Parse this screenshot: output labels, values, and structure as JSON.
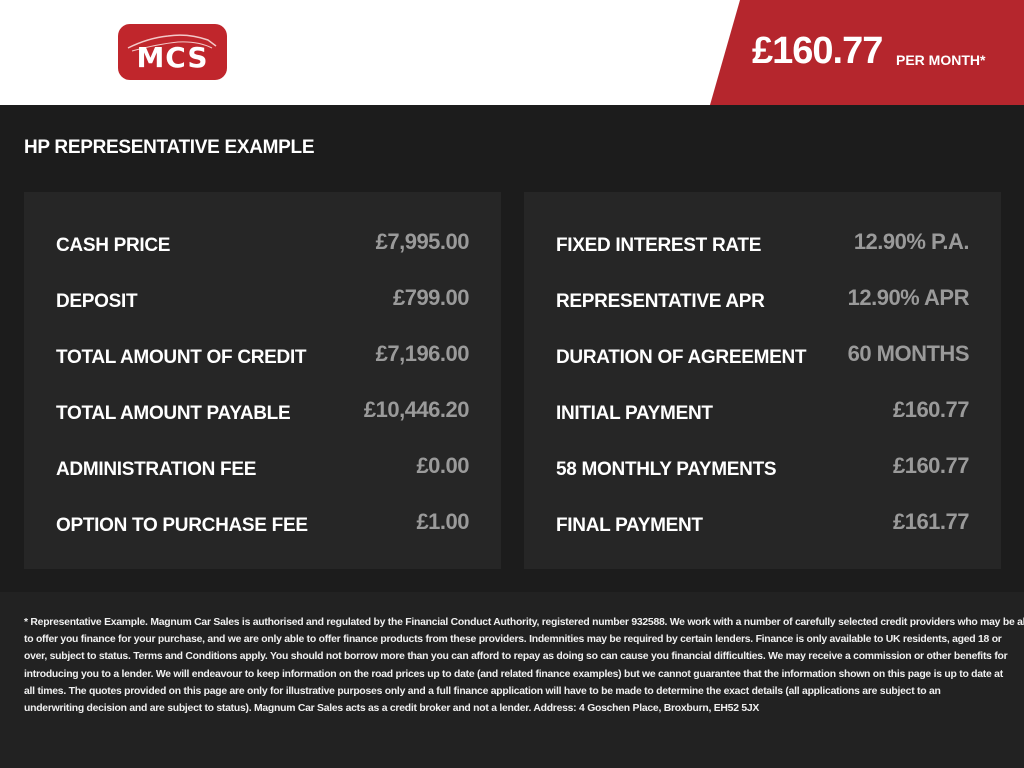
{
  "header": {
    "logo_text": "MCS",
    "price": "£160.77",
    "per_month": "PER MONTH*",
    "accent_color": "#b5262d"
  },
  "section_title": "HP REPRESENTATIVE EXAMPLE",
  "left_panel": [
    {
      "label": "CASH PRICE",
      "value": "£7,995.00"
    },
    {
      "label": "DEPOSIT",
      "value": "£799.00"
    },
    {
      "label": "TOTAL AMOUNT OF CREDIT",
      "value": "£7,196.00"
    },
    {
      "label": "TOTAL AMOUNT PAYABLE",
      "value": "£10,446.20"
    },
    {
      "label": "ADMINISTRATION FEE",
      "value": "£0.00"
    },
    {
      "label": "OPTION TO PURCHASE FEE",
      "value": "£1.00"
    }
  ],
  "right_panel": [
    {
      "label": "FIXED INTEREST RATE",
      "value": "12.90% P.A."
    },
    {
      "label": "REPRESENTATIVE APR",
      "value": "12.90% APR"
    },
    {
      "label": "DURATION OF AGREEMENT",
      "value": "60 MONTHS"
    },
    {
      "label": "INITIAL PAYMENT",
      "value": "£160.77"
    },
    {
      "label": "58 MONTHLY PAYMENTS",
      "value": "£160.77"
    },
    {
      "label": "FINAL PAYMENT",
      "value": "£161.77"
    }
  ],
  "disclaimer_lines": [
    "* Representative Example. Magnum Car Sales is authorised and regulated by the Financial Conduct Authority, registered number 932588. We work with a number of carefully selected credit providers who may be able",
    "to offer you finance for your purchase, and we are only able to offer finance products from these providers. Indemnities may be required by certain lenders. Finance is only available to UK residents, aged 18 or",
    "over, subject to status. Terms and Conditions apply. You should not borrow more than you can afford to repay as doing so can cause you financial difficulties. We may receive a commission or other benefits for",
    "introducing you to a lender. We will endeavour to keep information on the road prices up to date (and related finance examples) but we cannot guarantee that the information shown on this page is up to date at",
    "all times. The quotes provided on this page are only for illustrative purposes only and a full finance application will have to be made to determine the exact details (all applications are subject to an",
    "underwriting decision and are subject to status). Magnum Car Sales acts as a credit broker and not a lender. Address: 4 Goschen Place, Broxburn, EH52 5JX"
  ]
}
